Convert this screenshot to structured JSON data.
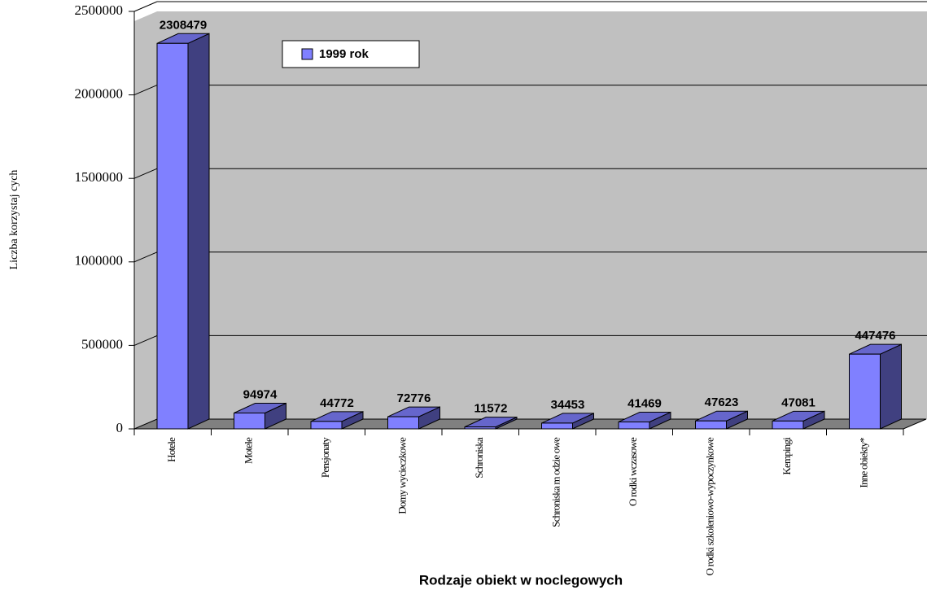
{
  "chart_data": {
    "type": "bar3d",
    "x_label": "Rodzaje obiekt  w noclegowych",
    "y_label": "Liczba korzystaj cych",
    "categories": [
      "Hotele",
      "Motele",
      "Pensjonaty",
      "Domy wycieczkowe",
      "Schroniska",
      "Schroniska m odzie owe",
      "O rodki wczasowe",
      "O rodki szkoleniowo-wypoczynkowe",
      "Kempingi",
      "Inne obiekty*"
    ],
    "series": [
      {
        "name": "1999 rok",
        "color": "#8080ff",
        "values": [
          2308479,
          94974,
          44772,
          72776,
          11572,
          34453,
          41469,
          47623,
          47081,
          447476
        ]
      }
    ],
    "ylim": [
      0,
      2500000
    ],
    "yticks": [
      0,
      500000,
      1000000,
      1500000,
      2000000,
      2500000
    ],
    "grid": true,
    "legend": "top-left"
  }
}
